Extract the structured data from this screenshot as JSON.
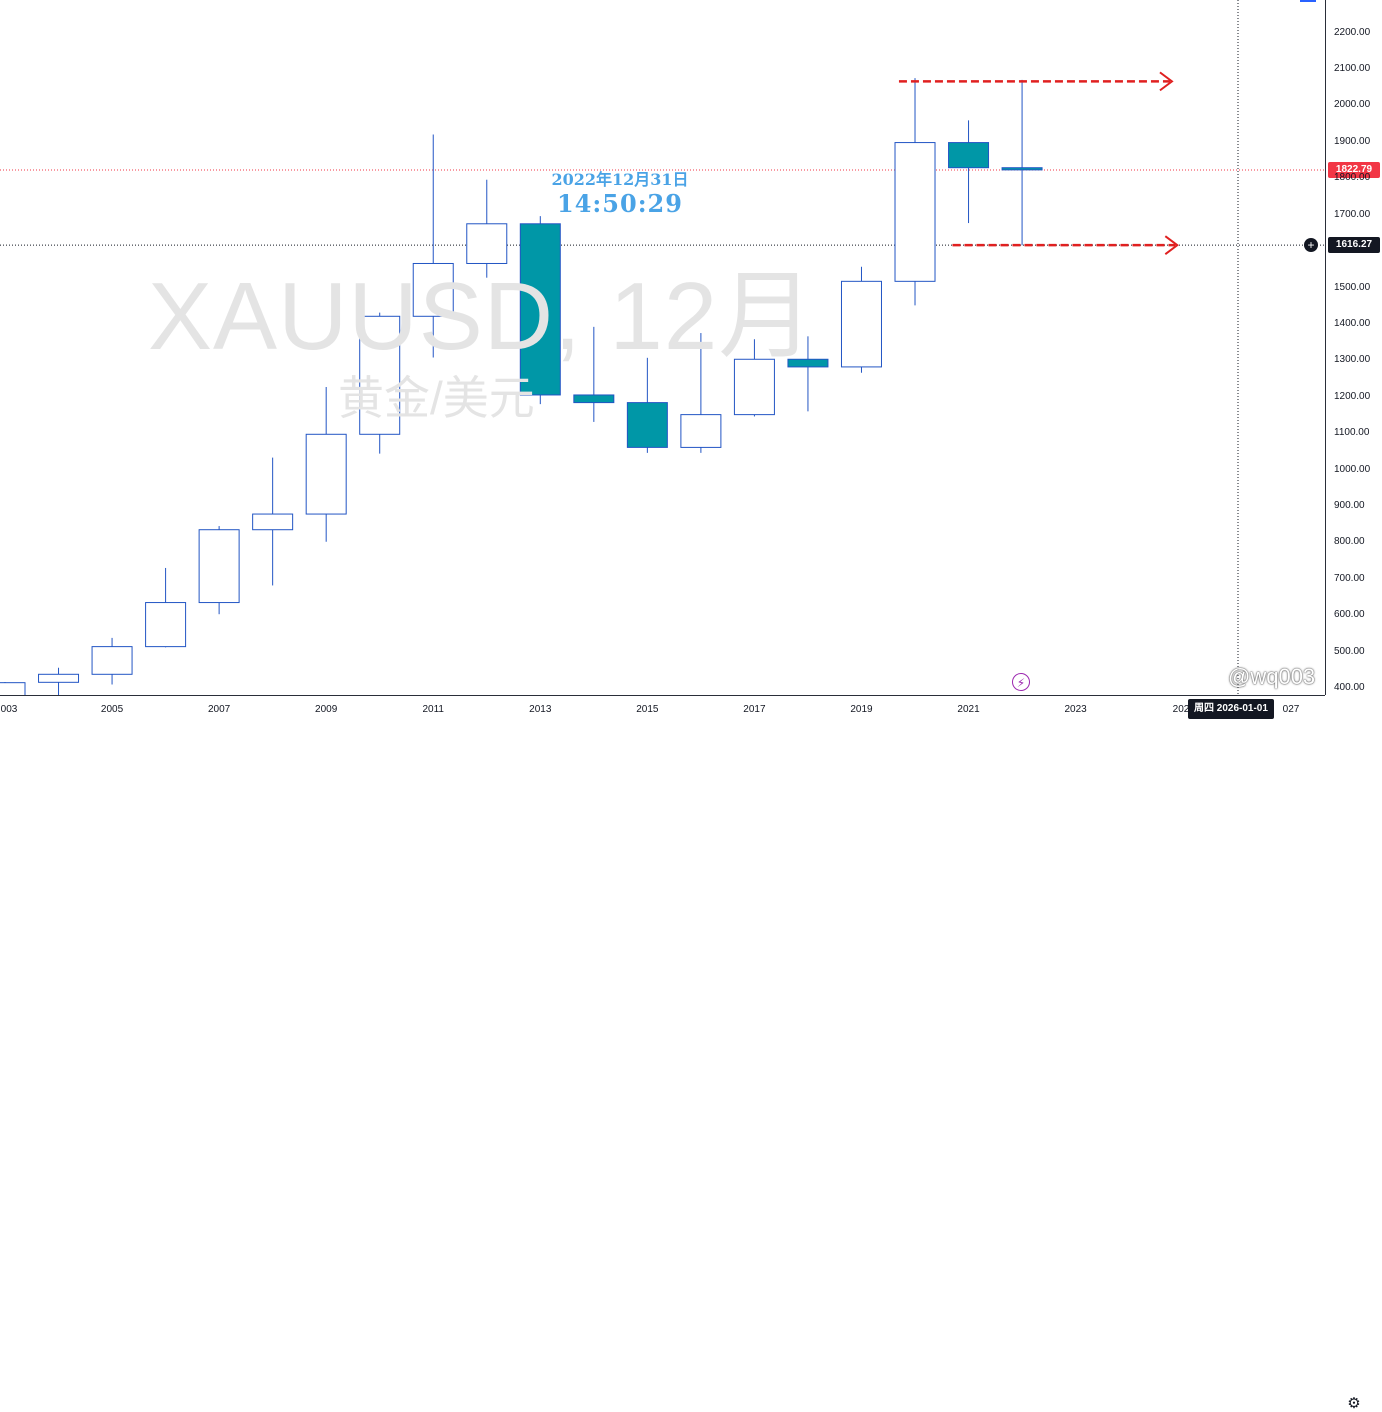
{
  "symbol_watermark": "XAUUSD, 12月",
  "description_watermark": "黄金/美元",
  "clock": {
    "date": "2022年12月31日",
    "time": "14:50:29"
  },
  "author_watermark": "@wq003",
  "crosshair": {
    "price_label": "1616.27",
    "time_label": "周四 2026-01-01"
  },
  "last_price": {
    "label": "1822.79"
  },
  "colors": {
    "up_border": "#2255c4",
    "down_fill": "#0097a7",
    "last_price": "#f23645",
    "arrow": "#e02020",
    "crosshair": "#131722"
  },
  "icons": [
    "crosshair-plus-icon",
    "flash-icon",
    "gear-icon"
  ],
  "chart_data": {
    "type": "candlestick",
    "interval": "12月",
    "symbol": "XAUUSD",
    "ylim": [
      380,
      2260
    ],
    "y_ticks": [
      "2200.00",
      "2100.00",
      "2000.00",
      "1900.00",
      "1800.00",
      "1700.00",
      "1500.00",
      "1400.00",
      "1300.00",
      "1200.00",
      "1100.00",
      "1000.00",
      "900.00",
      "800.00",
      "700.00",
      "600.00",
      "500.00",
      "400.00"
    ],
    "x_ticks": [
      "003",
      "2005",
      "2007",
      "2009",
      "2011",
      "2013",
      "2015",
      "2017",
      "2019",
      "2021",
      "2023",
      "202",
      "027"
    ],
    "candles": [
      {
        "year": 2003,
        "open": 347,
        "high": 417,
        "low": 320,
        "close": 415
      },
      {
        "year": 2004,
        "open": 416,
        "high": 456,
        "low": 373,
        "close": 438
      },
      {
        "year": 2005,
        "open": 438,
        "high": 538,
        "low": 410,
        "close": 514
      },
      {
        "year": 2006,
        "open": 514,
        "high": 730,
        "low": 512,
        "close": 635
      },
      {
        "year": 2007,
        "open": 635,
        "high": 845,
        "low": 603,
        "close": 835
      },
      {
        "year": 2008,
        "open": 835,
        "high": 1033,
        "low": 682,
        "close": 878
      },
      {
        "year": 2009,
        "open": 878,
        "high": 1227,
        "low": 802,
        "close": 1097
      },
      {
        "year": 2010,
        "open": 1097,
        "high": 1431,
        "low": 1044,
        "close": 1421
      },
      {
        "year": 2011,
        "open": 1421,
        "high": 1920,
        "low": 1308,
        "close": 1566
      },
      {
        "year": 2012,
        "open": 1566,
        "high": 1796,
        "low": 1527,
        "close": 1675
      },
      {
        "year": 2013,
        "open": 1675,
        "high": 1696,
        "low": 1180,
        "close": 1205
      },
      {
        "year": 2014,
        "open": 1205,
        "high": 1392,
        "low": 1131,
        "close": 1184
      },
      {
        "year": 2015,
        "open": 1184,
        "high": 1307,
        "low": 1046,
        "close": 1061
      },
      {
        "year": 2016,
        "open": 1061,
        "high": 1375,
        "low": 1046,
        "close": 1151
      },
      {
        "year": 2017,
        "open": 1151,
        "high": 1358,
        "low": 1146,
        "close": 1303
      },
      {
        "year": 2018,
        "open": 1303,
        "high": 1366,
        "low": 1160,
        "close": 1282
      },
      {
        "year": 2019,
        "open": 1282,
        "high": 1557,
        "low": 1266,
        "close": 1517
      },
      {
        "year": 2020,
        "open": 1517,
        "high": 2075,
        "low": 1451,
        "close": 1898
      },
      {
        "year": 2021,
        "open": 1898,
        "high": 1959,
        "low": 1677,
        "close": 1829
      },
      {
        "year": 2022,
        "open": 1829,
        "high": 2070,
        "low": 1616,
        "close": 1823
      }
    ],
    "horizontal_lines": [
      {
        "price": 1822.79,
        "style": "dotted",
        "color": "#f23645"
      },
      {
        "price": 1616.27,
        "style": "dotted",
        "color": "#131722"
      }
    ],
    "arrows": [
      {
        "price": 2066,
        "from_year": 2019.7,
        "to_year": 2024.8
      },
      {
        "price": 1616.27,
        "from_year": 2020.7,
        "to_year": 2024.9
      }
    ],
    "crosshair_x": "2026-01-01"
  }
}
